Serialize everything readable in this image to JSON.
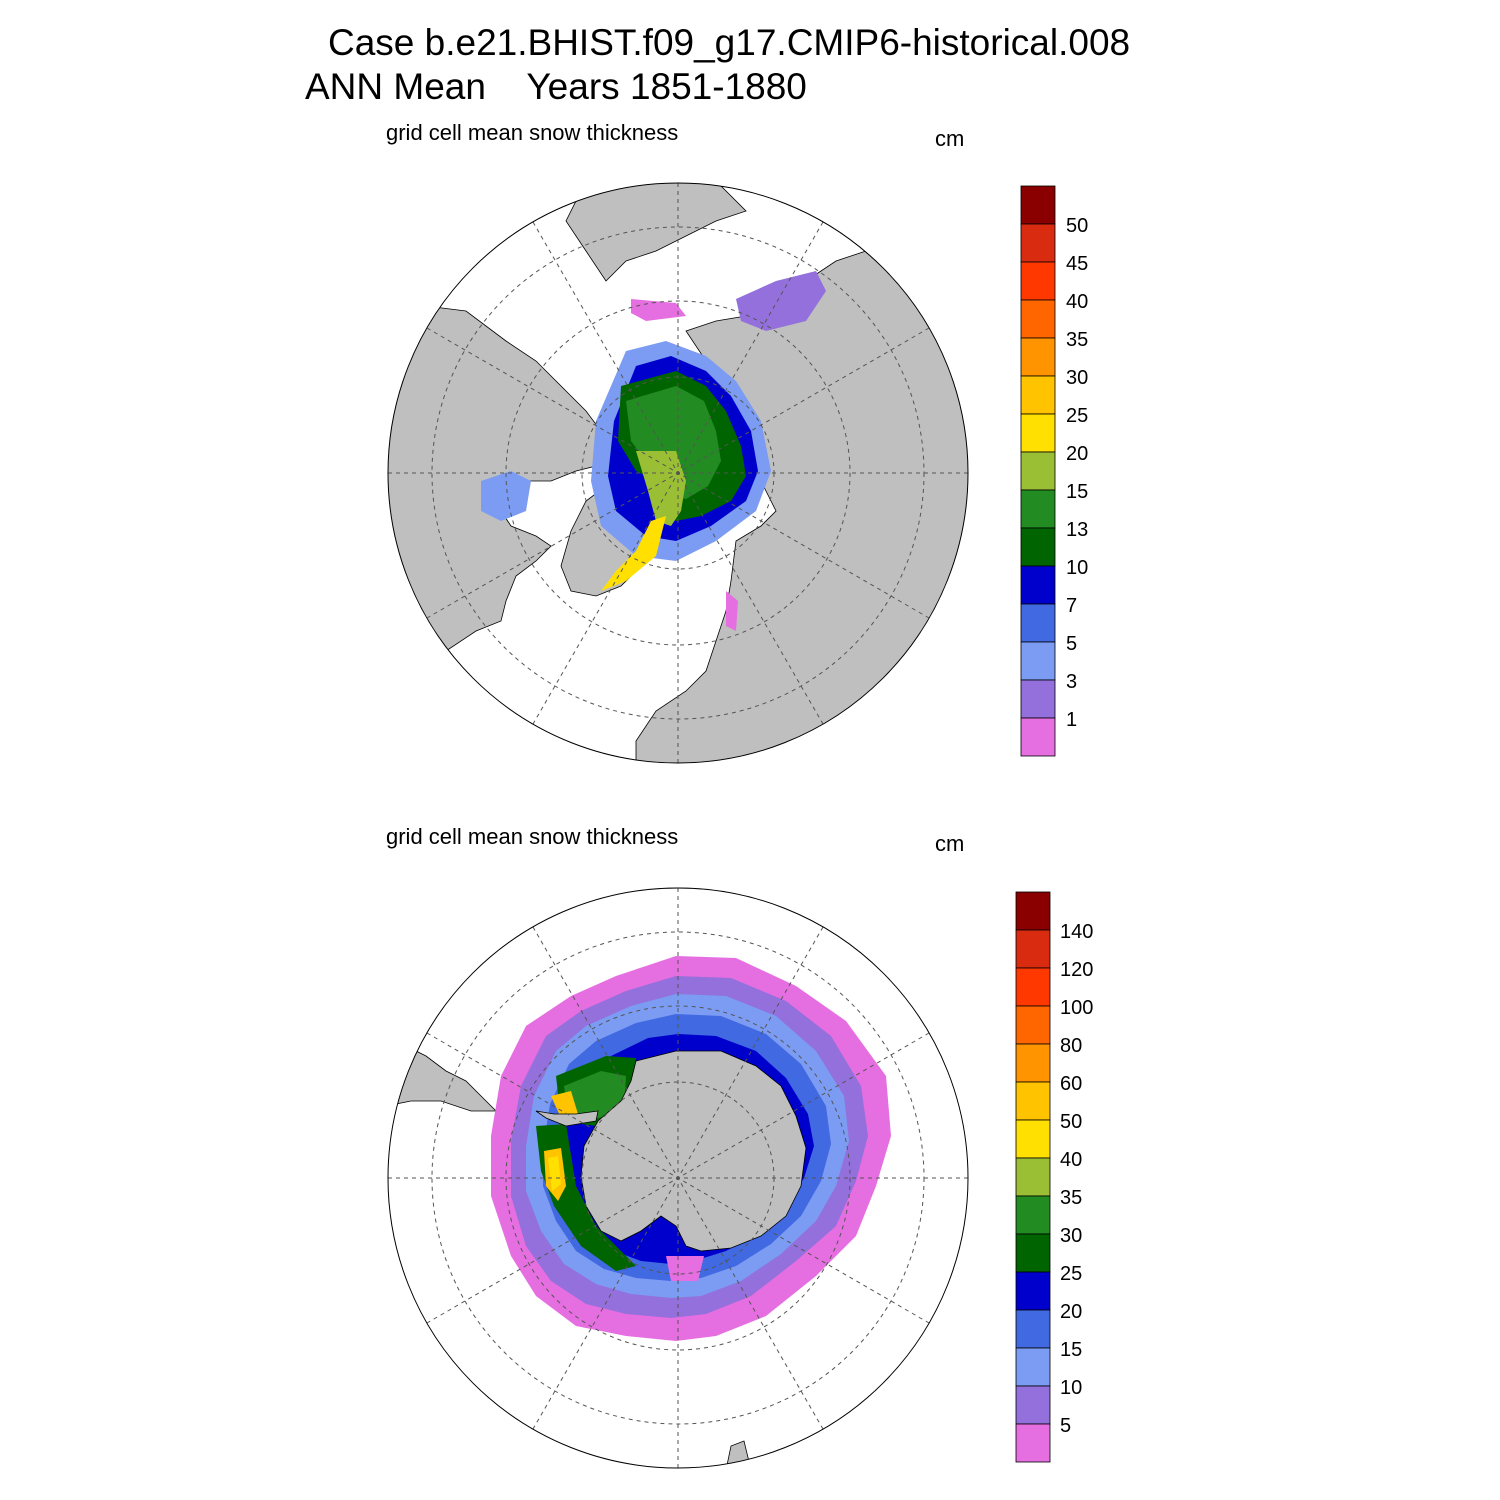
{
  "header": {
    "case_line": "Case b.e21.BHIST.f09_g17.CMIP6-historical.008",
    "period_line": "ANN Mean    Years 1851-1880"
  },
  "panels": [
    {
      "id": "north",
      "subtitle": "grid cell mean snow thickness",
      "units": "cm",
      "colorbar": {
        "labels": [
          "50",
          "45",
          "40",
          "35",
          "30",
          "25",
          "20",
          "15",
          "13",
          "10",
          "7",
          "5",
          "3",
          "1"
        ],
        "colors": [
          "#8a0000",
          "#d92b10",
          "#ff3800",
          "#ff6600",
          "#ff9400",
          "#ffc300",
          "#ffe000",
          "#9bbf34",
          "#228b22",
          "#006400",
          "#0000cd",
          "#4169e1",
          "#7b9cf2",
          "#9370db",
          "#e56ee0"
        ]
      }
    },
    {
      "id": "south",
      "subtitle": "grid cell mean snow thickness",
      "units": "cm",
      "colorbar": {
        "labels": [
          "140",
          "120",
          "100",
          "80",
          "60",
          "50",
          "40",
          "35",
          "30",
          "25",
          "20",
          "15",
          "10",
          "5"
        ],
        "colors": [
          "#8a0000",
          "#d92b10",
          "#ff3800",
          "#ff6600",
          "#ff9400",
          "#ffc300",
          "#ffe000",
          "#9bbf34",
          "#228b22",
          "#006400",
          "#0000cd",
          "#4169e1",
          "#7b9cf2",
          "#9370db",
          "#e56ee0"
        ]
      }
    }
  ],
  "map_colors": {
    "land": "#bfbfbf",
    "ocean": "#ffffff",
    "grid": "#555555"
  }
}
